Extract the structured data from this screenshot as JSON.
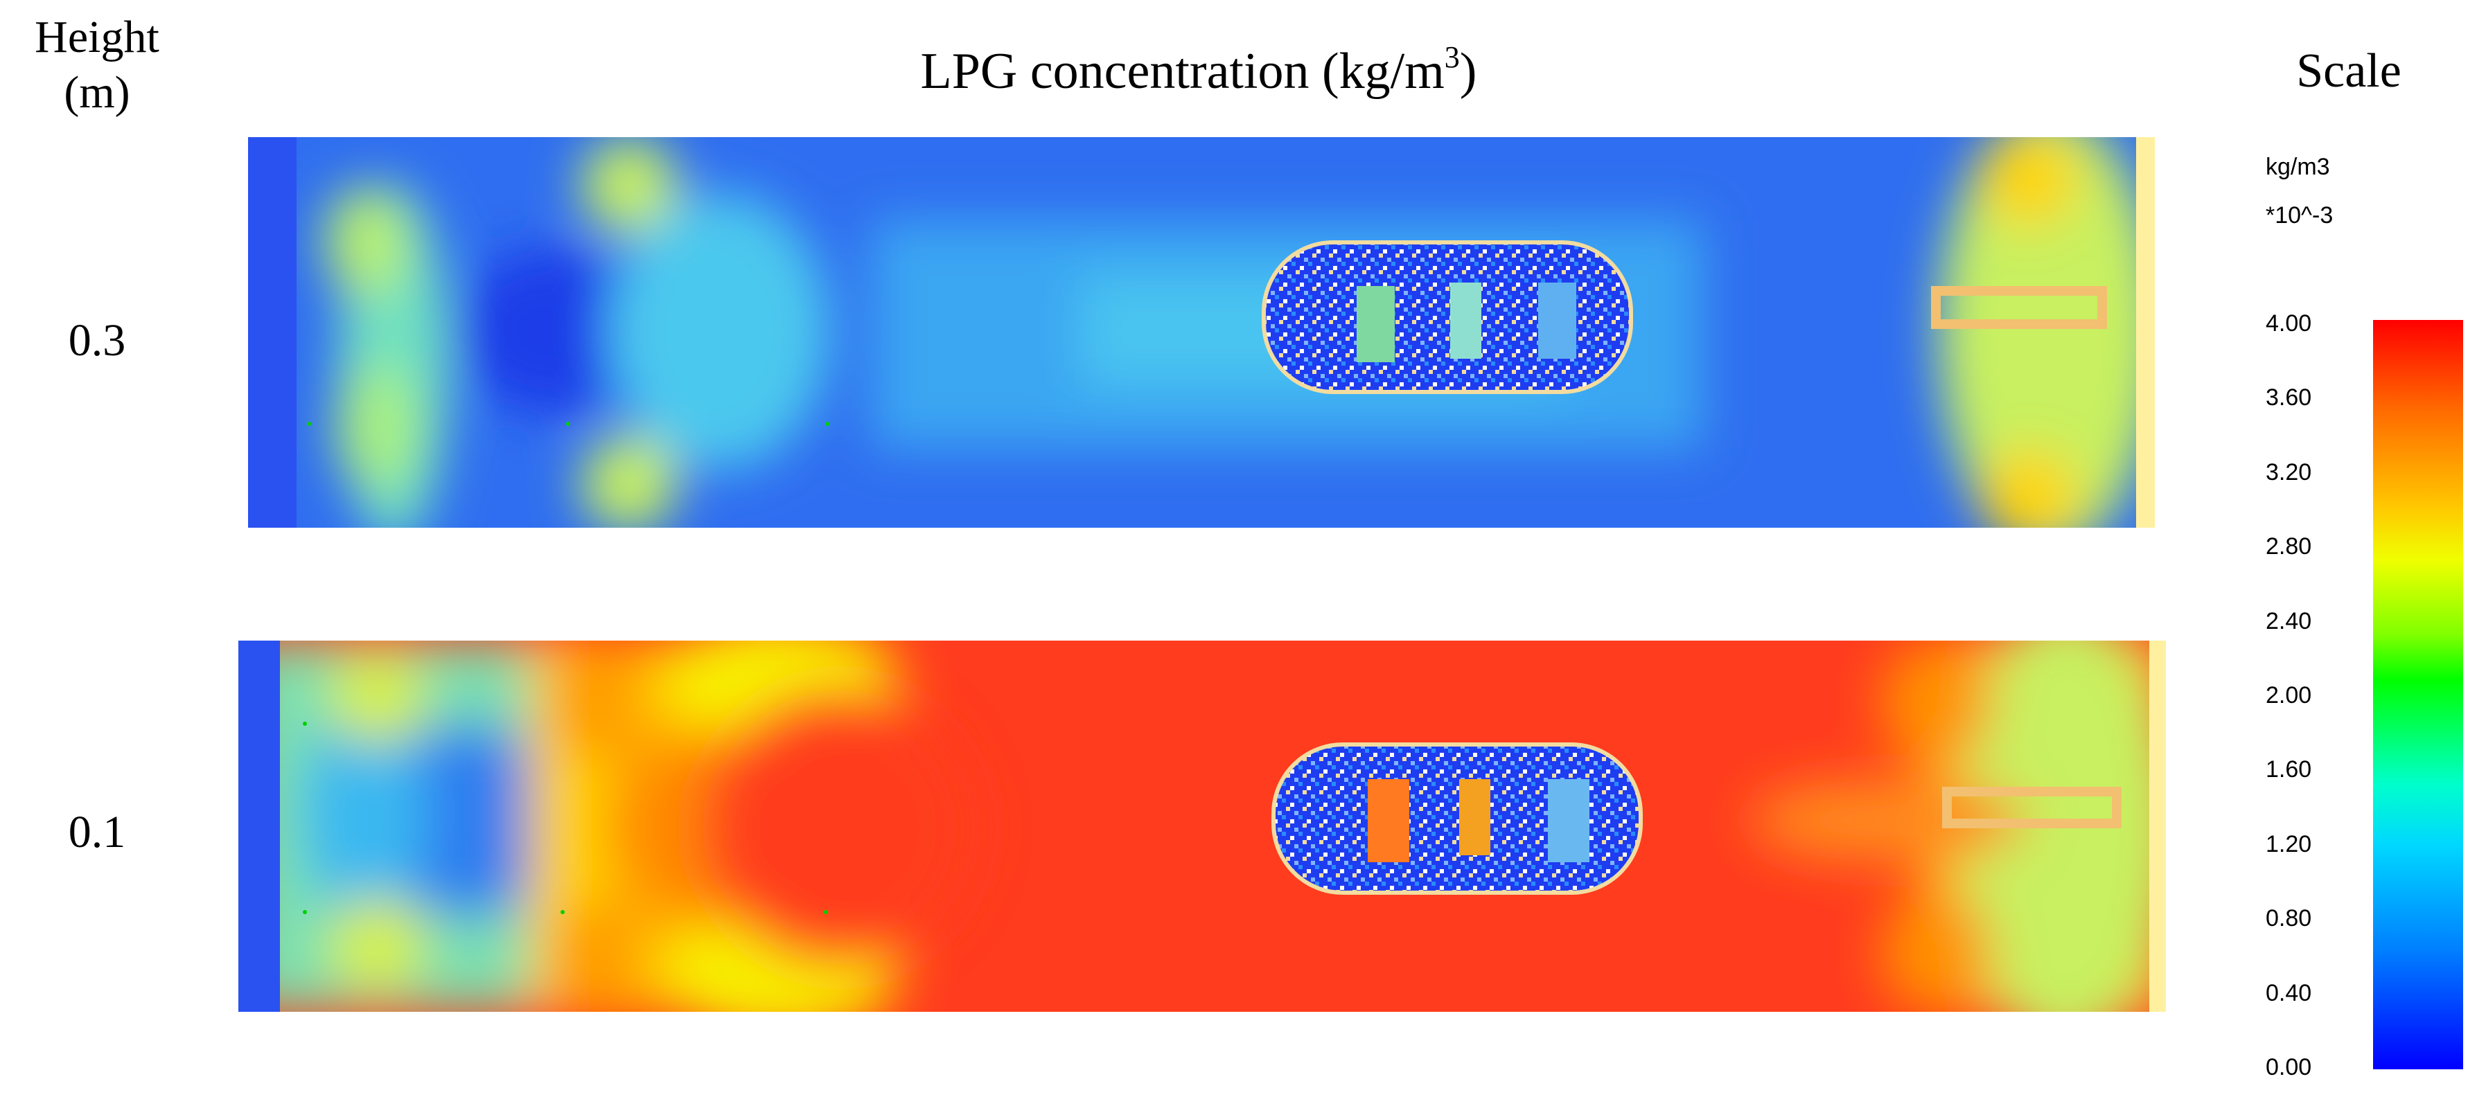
{
  "figure": {
    "height_header": "Height\n(m)",
    "title_main": "LPG concentration (kg/m",
    "title_sup": "3",
    "title_close": ")",
    "scale_header": "Scale"
  },
  "colors": {
    "min": "#0000ff",
    "low": "#00d8ff",
    "mid": "#00ff00",
    "high": "#ffe600",
    "max": "#ff0000"
  },
  "chart_data": {
    "type": "heatmap",
    "title": "LPG concentration (kg/m3)",
    "ylabel": "Height (m)",
    "rows": [
      {
        "height_label": "0.3",
        "dominant_level": "low"
      },
      {
        "height_label": "0.1",
        "dominant_level": "high"
      }
    ],
    "colorbar": {
      "unit": "kg/m3",
      "multiplier": "*10^-3",
      "range": [
        0.0,
        4.0
      ],
      "ticks": [
        "4.00",
        "3.60",
        "3.20",
        "2.80",
        "2.40",
        "2.00",
        "1.60",
        "1.20",
        "0.80",
        "0.40",
        "0.00"
      ]
    }
  }
}
